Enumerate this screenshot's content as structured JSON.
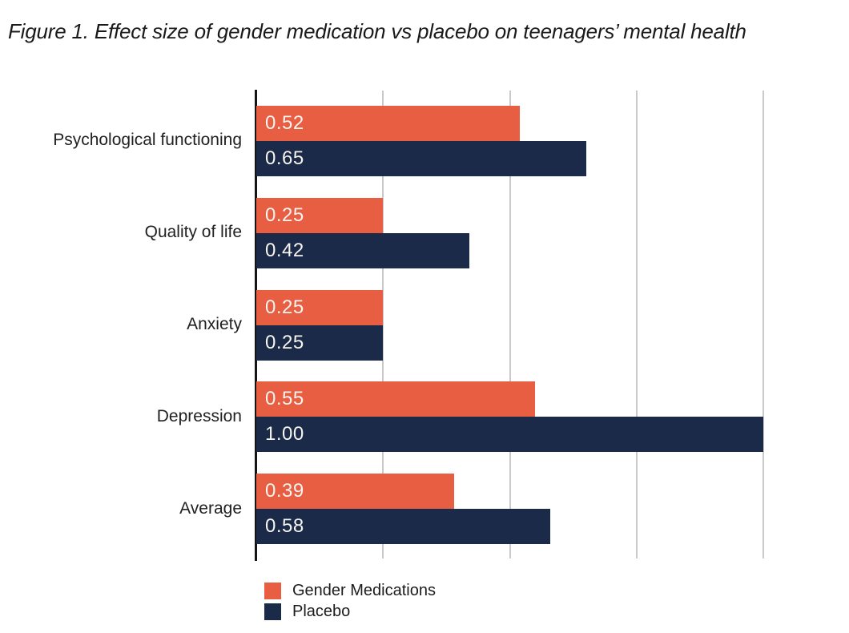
{
  "title": "Figure 1. Effect size of gender medication vs placebo on teenagers’ mental health",
  "chart_data": {
    "type": "bar",
    "orientation": "horizontal",
    "title": "Figure 1. Effect size of gender medication vs placebo on teenagers’ mental health",
    "categories": [
      "Psychological functioning",
      "Quality of life",
      "Anxiety",
      "Depression",
      "Average"
    ],
    "series": [
      {
        "name": "Gender Medications",
        "color": "#e75e43",
        "values": [
          0.52,
          0.25,
          0.25,
          0.55,
          0.39
        ]
      },
      {
        "name": "Placebo",
        "color": "#1b2a48",
        "values": [
          0.65,
          0.42,
          0.25,
          1.0,
          0.58
        ]
      }
    ],
    "value_labels_shown": true,
    "value_label_color": "#f6f4ef",
    "xlabel": "",
    "ylabel": "",
    "xlim": [
      0,
      1.165
    ],
    "gridlines": [
      0.25,
      0.5,
      0.75,
      1.0
    ],
    "grid_color": "#c9c9c9",
    "axis_color": "#151515",
    "tick_labels_shown": false,
    "legend_position": "bottom-left",
    "background": "#ffffff"
  }
}
